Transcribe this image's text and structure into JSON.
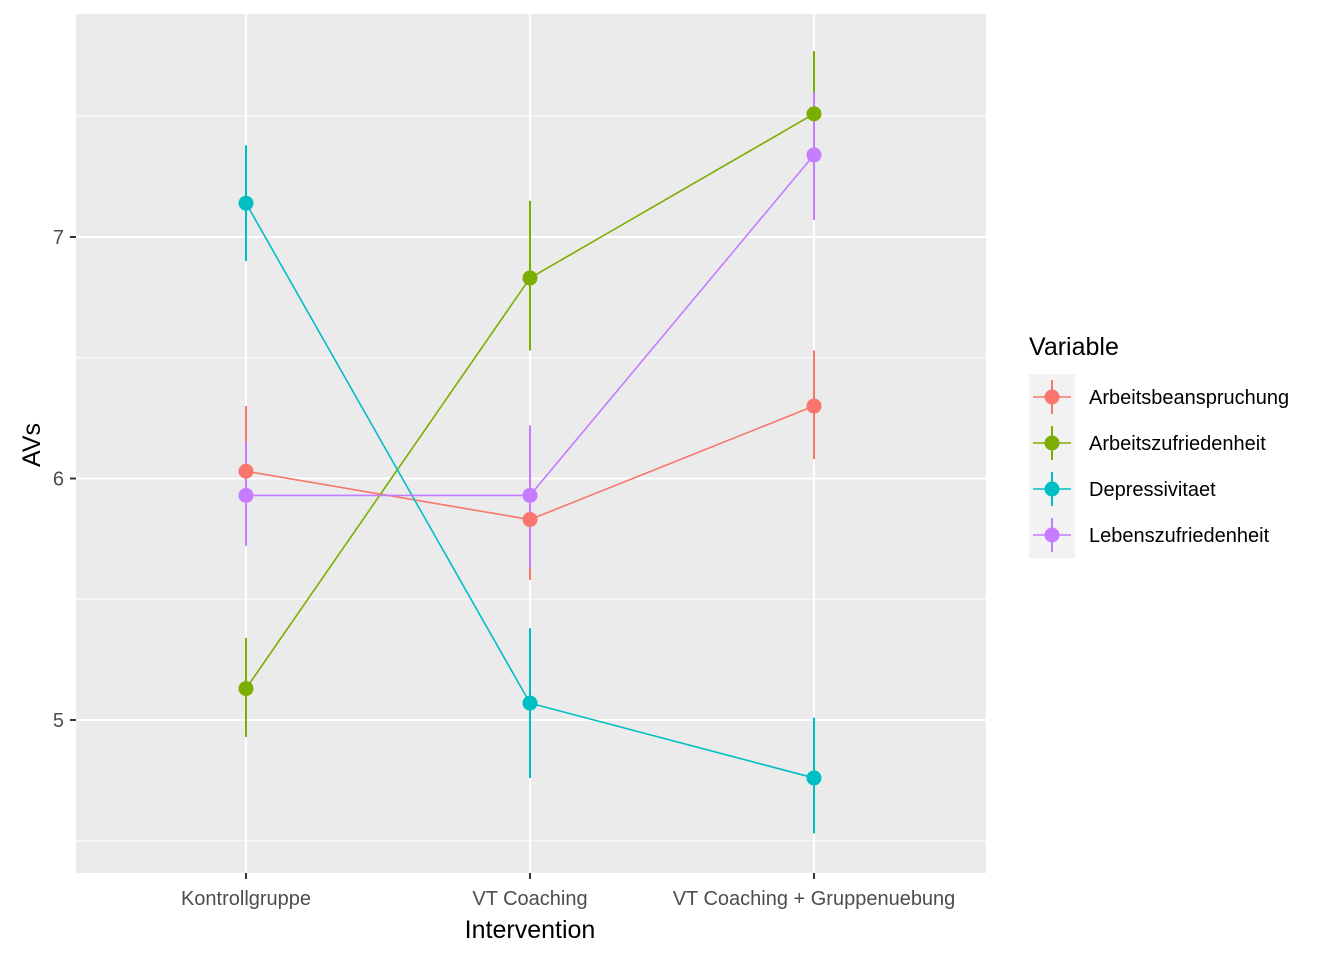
{
  "chart_data": {
    "type": "line",
    "xlabel": "Intervention",
    "ylabel": "AVs",
    "categories": [
      "Kontrollgruppe",
      "VT Coaching",
      "VT Coaching + Gruppenuebung"
    ],
    "ylim": [
      4.45,
      7.9
    ],
    "yticks": [
      5,
      6,
      7
    ],
    "grid": true,
    "legend": {
      "title": "Variable",
      "position": "right"
    },
    "series": [
      {
        "name": "Arbeitsbeanspruchung",
        "color": "#F8766D",
        "values": [
          6.03,
          5.83,
          6.3
        ],
        "error_low": [
          5.77,
          5.58,
          6.08
        ],
        "error_high": [
          6.3,
          6.09,
          6.53
        ]
      },
      {
        "name": "Arbeitszufriedenheit",
        "color": "#7CAE00",
        "values": [
          5.13,
          6.83,
          7.51
        ],
        "error_low": [
          4.93,
          6.53,
          7.26
        ],
        "error_high": [
          5.34,
          7.15,
          7.77
        ]
      },
      {
        "name": "Depressivitaet",
        "color": "#00BFC4",
        "values": [
          7.14,
          5.07,
          4.76
        ],
        "error_low": [
          6.9,
          4.76,
          4.53
        ],
        "error_high": [
          7.38,
          5.38,
          5.01
        ]
      },
      {
        "name": "Lebenszufriedenheit",
        "color": "#C77CFF",
        "values": [
          5.93,
          5.93,
          7.34
        ],
        "error_low": [
          5.72,
          5.63,
          7.07
        ],
        "error_high": [
          6.15,
          6.22,
          7.6
        ]
      }
    ]
  }
}
